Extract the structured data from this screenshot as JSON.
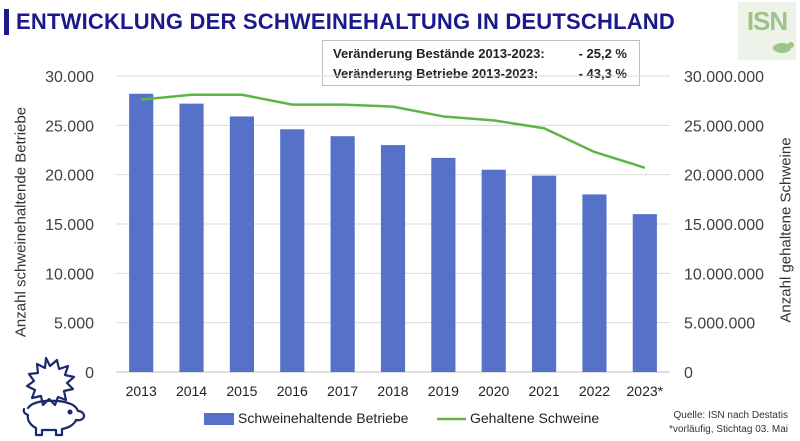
{
  "header": {
    "title": "ENTWICKLUNG DER SCHWEINEHALTUNG IN DEUTSCHLAND",
    "logo_text": "ISN"
  },
  "infobox": {
    "row1_label": "Veränderung Bestände 2013-2023:",
    "row1_value": "- 25,2 %",
    "row2_label": "Veränderung Betriebe  2013-2023:",
    "row2_value": "- 43,3 %"
  },
  "source": {
    "line1": "Quelle: ISN nach Destatis",
    "line2": "*vorläufig, Stichtag 03. Mai"
  },
  "colors": {
    "bar": "#5572c8",
    "line": "#5db548",
    "title": "#1a1a8c"
  },
  "chart_data": {
    "type": "bar",
    "title": "ENTWICKLUNG DER SCHWEINEHALTUNG IN DEUTSCHLAND",
    "categories": [
      "2013",
      "2014",
      "2015",
      "2016",
      "2017",
      "2018",
      "2019",
      "2020",
      "2021",
      "2022",
      "2023*"
    ],
    "series": [
      {
        "name": "Schweinehaltende Betriebe",
        "type": "bar",
        "axis": "left",
        "values": [
          28200,
          27200,
          25900,
          24600,
          23900,
          23000,
          21700,
          20500,
          19900,
          18000,
          16000
        ]
      },
      {
        "name": "Gehaltene Schweine",
        "type": "line",
        "axis": "right",
        "values": [
          27600000,
          28100000,
          28100000,
          27100000,
          27100000,
          26900000,
          25900000,
          25500000,
          24700000,
          22300000,
          20700000
        ]
      }
    ],
    "ylabel_left": "Anzahl schweinehaltende Betriebe",
    "ylabel_right": "Anzahl gehaltene Schweine",
    "ylim_left": [
      0,
      30000
    ],
    "ylim_right": [
      0,
      30000000
    ],
    "yticks_left": [
      "0",
      "5.000",
      "10.000",
      "15.000",
      "20.000",
      "25.000",
      "30.000"
    ],
    "yticks_right": [
      "0",
      "5.000.000",
      "10.000.000",
      "15.000.000",
      "20.000.000",
      "25.000.000",
      "30.000.000"
    ],
    "grid": true,
    "legend_position": "bottom"
  }
}
